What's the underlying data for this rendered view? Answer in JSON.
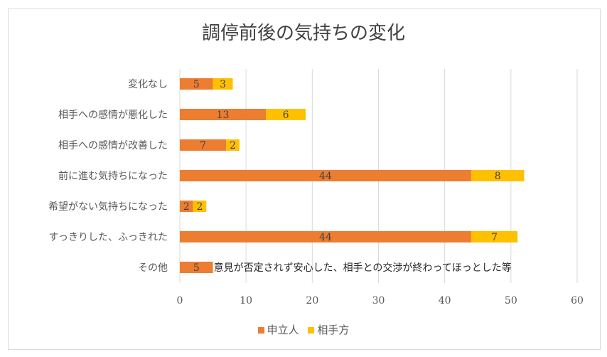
{
  "chart_data": {
    "type": "bar",
    "orientation": "horizontal",
    "stacked": true,
    "title": "調停前後の気持ちの変化",
    "categories": [
      "変化なし",
      "相手への感情が悪化した",
      "相手への感情が改善した",
      "前に進む気持ちになった",
      "希望がない気持ちになった",
      "すっきりした、ふっきれた",
      "その他"
    ],
    "series": [
      {
        "name": "申立人",
        "color": "#ed7d31",
        "values": [
          5,
          13,
          7,
          44,
          2,
          44,
          5
        ]
      },
      {
        "name": "相手方",
        "color": "#ffc000",
        "values": [
          3,
          6,
          2,
          8,
          2,
          7,
          0
        ]
      }
    ],
    "xlim": [
      0,
      60
    ],
    "xticks": [
      0,
      10,
      20,
      30,
      40,
      50,
      60
    ],
    "grid": true,
    "legend": "bottom",
    "annotation": "意見が否定されず安心した、相手との交渉が終わってほっとした等"
  }
}
